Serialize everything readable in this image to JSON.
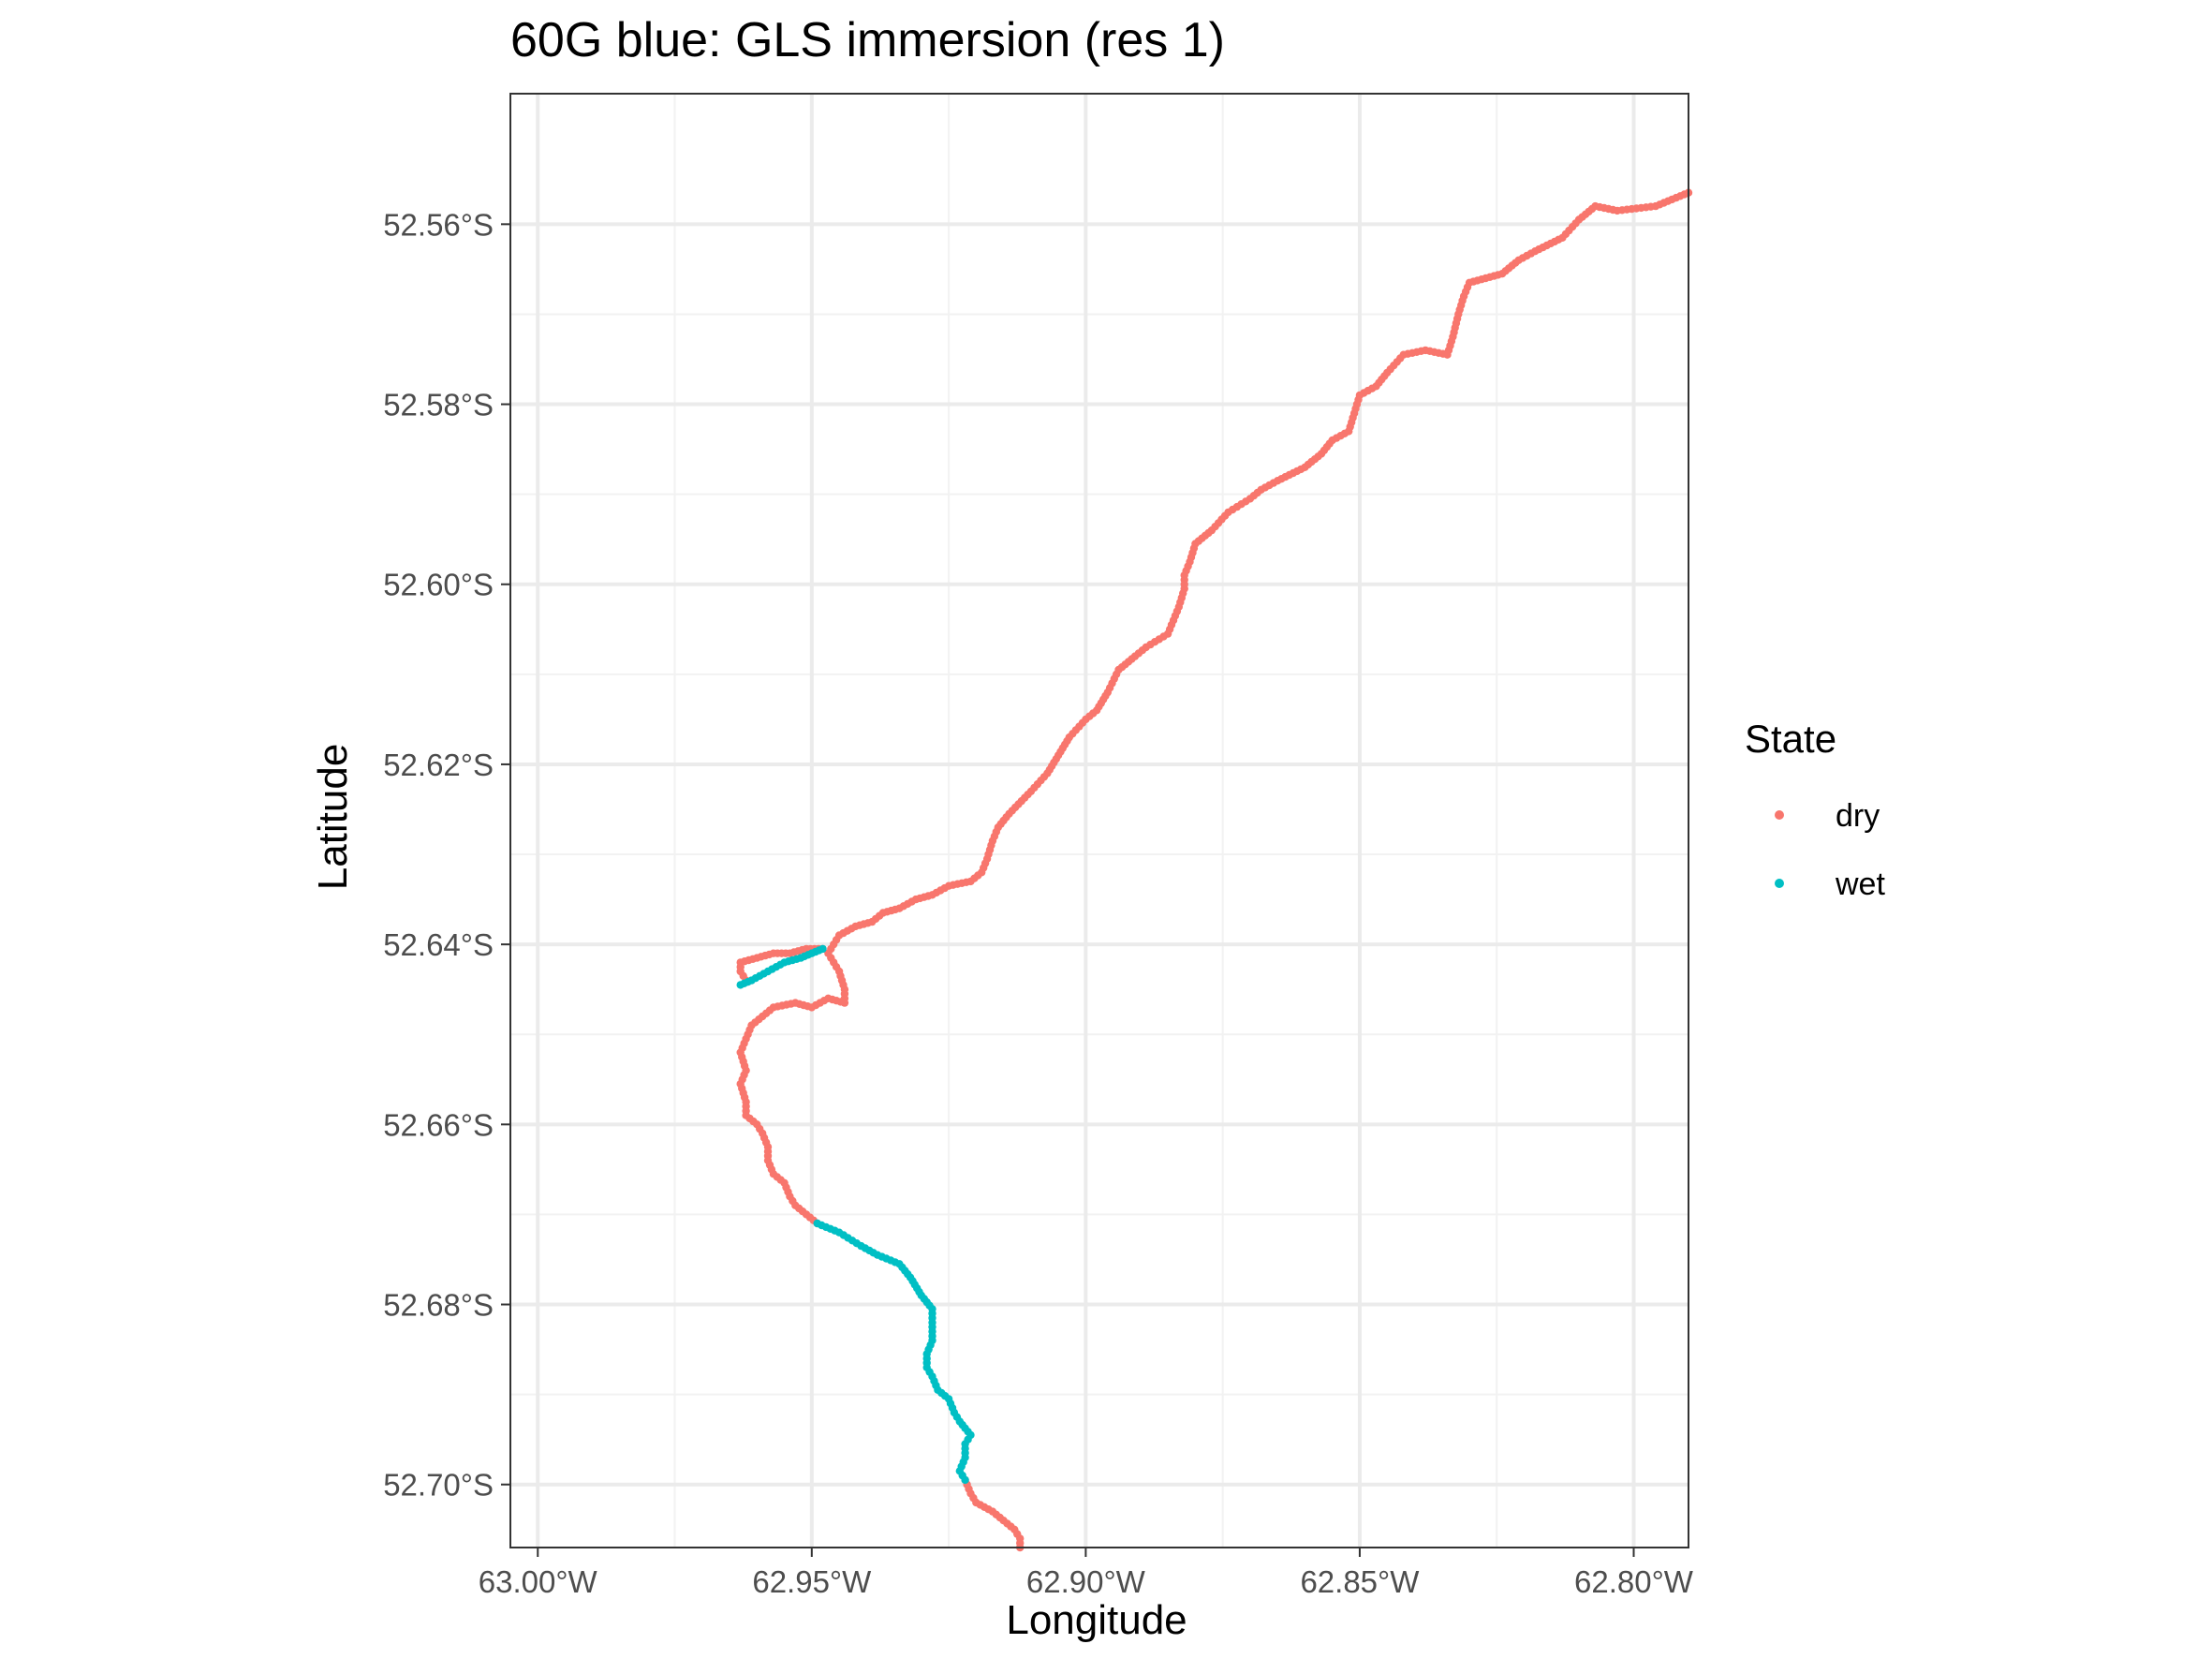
{
  "chart_data": {
    "type": "scatter",
    "title": "60G blue: GLS immersion (res 1)",
    "xlabel": "Longitude",
    "ylabel": "Latitude",
    "xlim": [
      -63.005,
      -62.79
    ],
    "ylim": [
      -52.707,
      -52.5455
    ],
    "x_ticks": [
      -63.0,
      -62.95,
      -62.9,
      -62.85,
      -62.8
    ],
    "x_tick_labels": [
      "63.00°W",
      "62.95°W",
      "62.90°W",
      "62.85°W",
      "62.80°W"
    ],
    "y_ticks": [
      -52.56,
      -52.58,
      -52.6,
      -52.62,
      -52.64,
      -52.66,
      -52.68,
      -52.7
    ],
    "y_tick_labels": [
      "52.56°S",
      "52.58°S",
      "52.60°S",
      "52.62°S",
      "52.64°S",
      "52.66°S",
      "52.68°S",
      "52.70°S"
    ],
    "grid": true,
    "legend": {
      "title": "State",
      "position": "right",
      "entries": [
        {
          "label": "dry",
          "color": "#F8766D"
        },
        {
          "label": "wet",
          "color": "#00BFC4"
        }
      ]
    },
    "series": [
      {
        "name": "dry",
        "color": "#F8766D",
        "segments": [
          [
            [
              -62.79,
              -52.5565
            ],
            [
              -62.796,
              -52.558
            ],
            [
              -62.803,
              -52.5585
            ],
            [
              -62.807,
              -52.558
            ],
            [
              -62.81,
              -52.5595
            ],
            [
              -62.813,
              -52.5615
            ],
            [
              -62.818,
              -52.563
            ],
            [
              -62.821,
              -52.564
            ],
            [
              -62.824,
              -52.5655
            ],
            [
              -62.827,
              -52.566
            ],
            [
              -62.83,
              -52.5665
            ],
            [
              -62.831,
              -52.568
            ],
            [
              -62.832,
              -52.57
            ],
            [
              -62.833,
              -52.5725
            ],
            [
              -62.834,
              -52.5745
            ],
            [
              -62.838,
              -52.574
            ],
            [
              -62.842,
              -52.5745
            ],
            [
              -62.845,
              -52.5765
            ],
            [
              -62.847,
              -52.578
            ],
            [
              -62.85,
              -52.579
            ],
            [
              -62.851,
              -52.581
            ],
            [
              -62.852,
              -52.583
            ],
            [
              -62.855,
              -52.584
            ],
            [
              -62.857,
              -52.5855
            ],
            [
              -62.86,
              -52.587
            ],
            [
              -62.865,
              -52.5885
            ],
            [
              -62.868,
              -52.5895
            ],
            [
              -62.87,
              -52.5905
            ],
            [
              -62.874,
              -52.592
            ],
            [
              -62.877,
              -52.594
            ],
            [
              -62.88,
              -52.5955
            ],
            [
              -62.881,
              -52.5975
            ],
            [
              -62.882,
              -52.599
            ],
            [
              -62.882,
              -52.6005
            ],
            [
              -62.883,
              -52.6025
            ],
            [
              -62.885,
              -52.6055
            ],
            [
              -62.889,
              -52.607
            ],
            [
              -62.891,
              -52.608
            ],
            [
              -62.894,
              -52.6095
            ],
            [
              -62.896,
              -52.612
            ],
            [
              -62.898,
              -52.614
            ],
            [
              -62.9,
              -52.615
            ],
            [
              -62.903,
              -52.617
            ],
            [
              -62.905,
              -52.619
            ],
            [
              -62.907,
              -52.621
            ],
            [
              -62.91,
              -52.623
            ],
            [
              -62.914,
              -52.6255
            ],
            [
              -62.916,
              -52.627
            ],
            [
              -62.917,
              -52.6285
            ],
            [
              -62.918,
              -52.6305
            ],
            [
              -62.919,
              -52.632
            ],
            [
              -62.921,
              -52.633
            ],
            [
              -62.925,
              -52.6335
            ],
            [
              -62.928,
              -52.6345
            ],
            [
              -62.931,
              -52.635
            ],
            [
              -62.934,
              -52.636
            ],
            [
              -62.937,
              -52.6365
            ],
            [
              -62.939,
              -52.6375
            ],
            [
              -62.942,
              -52.638
            ],
            [
              -62.945,
              -52.639
            ],
            [
              -62.946,
              -52.64
            ],
            [
              -62.947,
              -52.641
            ],
            [
              -62.946,
              -52.642
            ],
            [
              -62.945,
              -52.643
            ],
            [
              -62.944,
              -52.645
            ],
            [
              -62.944,
              -52.6465
            ],
            [
              -62.947,
              -52.646
            ],
            [
              -62.95,
              -52.647
            ],
            [
              -62.953,
              -52.6465
            ],
            [
              -62.957,
              -52.647
            ],
            [
              -62.959,
              -52.648
            ],
            [
              -62.961,
              -52.649
            ],
            [
              -62.962,
              -52.6505
            ],
            [
              -62.963,
              -52.652
            ],
            [
              -62.962,
              -52.654
            ],
            [
              -62.963,
              -52.6555
            ],
            [
              -62.962,
              -52.6575
            ],
            [
              -62.962,
              -52.659
            ],
            [
              -62.96,
              -52.66
            ],
            [
              -62.959,
              -52.661
            ],
            [
              -62.958,
              -52.6625
            ],
            [
              -62.958,
              -52.664
            ],
            [
              -62.957,
              -52.6655
            ],
            [
              -62.955,
              -52.6665
            ],
            [
              -62.954,
              -52.668
            ],
            [
              -62.953,
              -52.669
            ],
            [
              -62.951,
              -52.67
            ],
            [
              -62.949,
              -52.671
            ]
          ],
          [
            [
              -62.962,
              -52.644
            ],
            [
              -62.963,
              -52.643
            ],
            [
              -62.963,
              -52.642
            ],
            [
              -62.96,
              -52.6415
            ],
            [
              -62.957,
              -52.641
            ],
            [
              -62.954,
              -52.641
            ],
            [
              -62.951,
              -52.6405
            ],
            [
              -62.948,
              -52.6405
            ]
          ],
          [
            [
              -62.922,
              -52.6995
            ],
            [
              -62.921,
              -52.701
            ],
            [
              -62.92,
              -52.702
            ],
            [
              -62.917,
              -52.703
            ],
            [
              -62.915,
              -52.704
            ],
            [
              -62.913,
              -52.705
            ],
            [
              -62.912,
              -52.706
            ],
            [
              -62.912,
              -52.707
            ]
          ]
        ]
      },
      {
        "name": "wet",
        "color": "#00BFC4",
        "segments": [
          [
            [
              -62.949,
              -52.671
            ],
            [
              -62.945,
              -52.672
            ],
            [
              -62.941,
              -52.6735
            ],
            [
              -62.938,
              -52.6745
            ],
            [
              -62.934,
              -52.6755
            ],
            [
              -62.932,
              -52.677
            ],
            [
              -62.93,
              -52.679
            ],
            [
              -62.928,
              -52.6805
            ],
            [
              -62.928,
              -52.682
            ],
            [
              -62.928,
              -52.684
            ],
            [
              -62.929,
              -52.6855
            ],
            [
              -62.929,
              -52.687
            ],
            [
              -62.928,
              -52.688
            ],
            [
              -62.927,
              -52.6895
            ],
            [
              -62.925,
              -52.6905
            ],
            [
              -62.924,
              -52.692
            ],
            [
              -62.923,
              -52.693
            ],
            [
              -62.921,
              -52.6945
            ],
            [
              -62.922,
              -52.6955
            ],
            [
              -62.922,
              -52.697
            ],
            [
              -62.923,
              -52.6985
            ],
            [
              -62.922,
              -52.6995
            ]
          ],
          [
            [
              -62.963,
              -52.6445
            ],
            [
              -62.961,
              -52.644
            ],
            [
              -62.958,
              -52.643
            ],
            [
              -62.955,
              -52.642
            ],
            [
              -62.952,
              -52.6415
            ],
            [
              -62.95,
              -52.641
            ],
            [
              -62.948,
              -52.6405
            ]
          ]
        ]
      }
    ]
  }
}
